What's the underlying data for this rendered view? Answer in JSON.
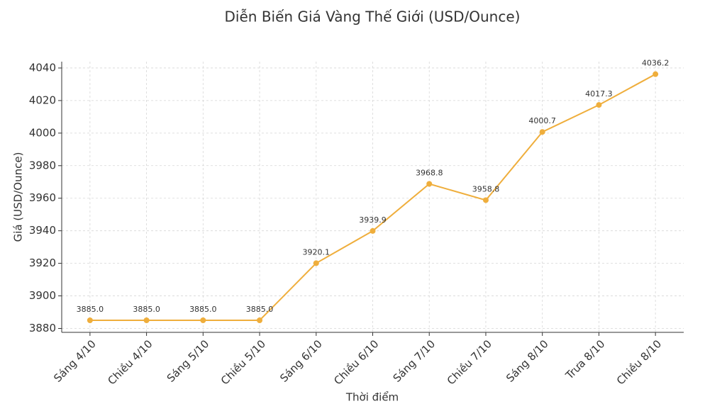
{
  "chart_data": {
    "type": "line",
    "title": "Diễn Biến Giá Vàng Thế Giới (USD/Ounce)",
    "x_label": "Thời điểm",
    "y_label": "Giá (USD/Ounce)",
    "categories": [
      "Sáng 4/10",
      "Chiều 4/10",
      "Sáng 5/10",
      "Chiều 5/10",
      "Sáng 6/10",
      "Chiều 6/10",
      "Sáng 7/10",
      "Chiều 7/10",
      "Sáng 8/10",
      "Trưa 8/10",
      "Chiều 8/10"
    ],
    "values": [
      3885.0,
      3885.0,
      3885.0,
      3885.0,
      3920.1,
      3939.9,
      3968.8,
      3958.8,
      4000.7,
      4017.3,
      4036.2
    ],
    "value_labels": [
      "3885.0",
      "3885.0",
      "3885.0",
      "3885.0",
      "3920.1",
      "3939.9",
      "3968.8",
      "3958.8",
      "4000.7",
      "4017.3",
      "4036.2"
    ],
    "color": "#efae3c",
    "ylim": [
      3877.6,
      4043.9
    ],
    "yticks": [
      3880,
      3900,
      3920,
      3940,
      3960,
      3980,
      4000,
      4020,
      4040
    ],
    "grid": true
  }
}
